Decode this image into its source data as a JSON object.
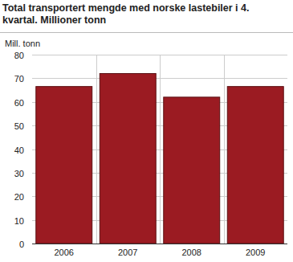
{
  "chart_data": {
    "type": "bar",
    "title": "Total transportert mengde med norske lastebiler i 4. kvartal. Millioner tonn",
    "y_label": "Mill. tonn",
    "categories": [
      "2006",
      "2007",
      "2008",
      "2009"
    ],
    "values": [
      66.5,
      72,
      62,
      66.5
    ],
    "color": "#9b1b22",
    "ylim": [
      0,
      80
    ],
    "yticks": [
      0,
      10,
      20,
      30,
      40,
      50,
      60,
      70,
      80
    ],
    "grid": true
  }
}
